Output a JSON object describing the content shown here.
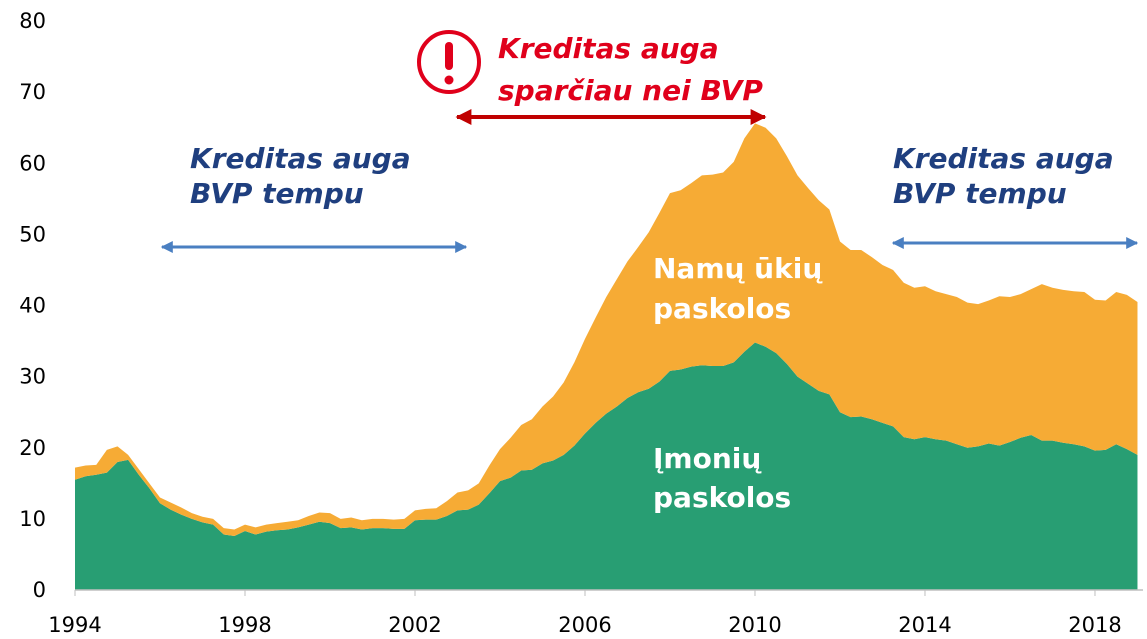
{
  "chart_data": {
    "type": "stacked_area",
    "x": [
      1994,
      1994.25,
      1994.5,
      1994.75,
      1995,
      1995.25,
      1995.5,
      1995.75,
      1996,
      1996.25,
      1996.5,
      1996.75,
      1997,
      1997.25,
      1997.5,
      1997.75,
      1998,
      1998.25,
      1998.5,
      1998.75,
      1999,
      1999.25,
      1999.5,
      1999.75,
      2000,
      2000.25,
      2000.5,
      2000.75,
      2001,
      2001.25,
      2001.5,
      2001.75,
      2002,
      2002.25,
      2002.5,
      2002.75,
      2003,
      2003.25,
      2003.5,
      2003.75,
      2004,
      2004.25,
      2004.5,
      2004.75,
      2005,
      2005.25,
      2005.5,
      2005.75,
      2006,
      2006.25,
      2006.5,
      2006.75,
      2007,
      2007.25,
      2007.5,
      2007.75,
      2008,
      2008.25,
      2008.5,
      2008.75,
      2009,
      2009.25,
      2009.5,
      2009.75,
      2010,
      2010.25,
      2010.5,
      2010.75,
      2011,
      2011.25,
      2011.5,
      2011.75,
      2012,
      2012.25,
      2012.5,
      2012.75,
      2013,
      2013.25,
      2013.5,
      2013.75,
      2014,
      2014.25,
      2014.5,
      2014.75,
      2015,
      2015.25,
      2015.5,
      2015.75,
      2016,
      2016.25,
      2016.5,
      2016.75,
      2017,
      2017.25,
      2017.5,
      2017.75,
      2018,
      2018.25,
      2018.5,
      2018.75,
      2019
    ],
    "series": [
      {
        "name": "Įmonių paskolos",
        "color": "#289e73",
        "values": [
          15.5,
          16.0,
          16.2,
          16.5,
          18.0,
          18.3,
          16.2,
          14.3,
          12.2,
          11.3,
          10.6,
          10.0,
          9.5,
          9.2,
          7.8,
          7.6,
          8.3,
          7.8,
          8.2,
          8.4,
          8.5,
          8.8,
          9.2,
          9.6,
          9.4,
          8.7,
          8.8,
          8.5,
          8.7,
          8.7,
          8.6,
          8.6,
          9.8,
          9.9,
          9.9,
          10.4,
          11.2,
          11.3,
          12.0,
          13.6,
          15.3,
          15.8,
          16.8,
          16.9,
          17.8,
          18.2,
          19.0,
          20.3,
          22.0,
          23.5,
          24.8,
          25.8,
          27.0,
          27.8,
          28.3,
          29.3,
          30.8,
          31.0,
          31.4,
          31.6,
          31.5,
          31.5,
          32.0,
          33.5,
          34.8,
          34.2,
          33.3,
          31.8,
          30.0,
          29.0,
          28.0,
          27.5,
          25.0,
          24.3,
          24.4,
          24.0,
          23.5,
          23.0,
          21.5,
          21.2,
          21.5,
          21.2,
          21.0,
          20.5,
          20.0,
          20.2,
          20.6,
          20.3,
          20.8,
          21.4,
          21.8,
          21.0,
          21.0,
          20.7,
          20.5,
          20.2,
          19.6,
          19.7,
          20.5,
          19.8,
          19.0
        ]
      },
      {
        "name": "Namų ūkių paskolos",
        "color": "#f6ab35",
        "values": [
          1.7,
          1.5,
          1.4,
          3.2,
          2.2,
          0.7,
          0.8,
          0.7,
          0.8,
          1.0,
          1.0,
          0.8,
          0.8,
          0.8,
          0.9,
          0.9,
          0.9,
          1.0,
          1.0,
          1.0,
          1.1,
          1.0,
          1.2,
          1.3,
          1.4,
          1.3,
          1.4,
          1.3,
          1.3,
          1.3,
          1.3,
          1.4,
          1.4,
          1.5,
          1.6,
          2.1,
          2.5,
          2.7,
          3.0,
          3.9,
          4.5,
          5.6,
          6.4,
          7.1,
          8.0,
          9.0,
          10.2,
          11.7,
          13.3,
          14.8,
          16.4,
          17.9,
          19.2,
          20.4,
          22.0,
          23.7,
          25.0,
          25.2,
          25.8,
          26.7,
          26.9,
          27.2,
          28.2,
          30.0,
          30.8,
          30.8,
          30.2,
          29.2,
          28.3,
          27.5,
          26.8,
          26.0,
          24.0,
          23.5,
          23.4,
          22.8,
          22.2,
          22.0,
          21.7,
          21.3,
          21.2,
          20.8,
          20.6,
          20.7,
          20.4,
          20.0,
          20.1,
          21.0,
          20.4,
          20.2,
          20.5,
          22.0,
          21.5,
          21.5,
          21.5,
          21.7,
          21.2,
          21.0,
          21.4,
          21.7,
          21.5
        ]
      }
    ],
    "xlim": [
      1994,
      2019.13
    ],
    "xticks": [
      1994,
      1998,
      2002,
      2006,
      2010,
      2014,
      2018
    ],
    "ylim": [
      0,
      80
    ],
    "yticks": [
      0,
      10,
      20,
      30,
      40,
      50,
      60,
      70,
      80
    ],
    "annotations": [
      {
        "lines": [
          "Kreditas auga",
          "BVP tempu"
        ],
        "color": "#1f3f7f"
      },
      {
        "lines": [
          "Kreditas auga",
          "sparčiau nei BVP"
        ],
        "color": "#e0001b"
      },
      {
        "lines": [
          "Kreditas auga",
          "BVP tempu"
        ],
        "color": "#1f3f7f"
      }
    ]
  }
}
